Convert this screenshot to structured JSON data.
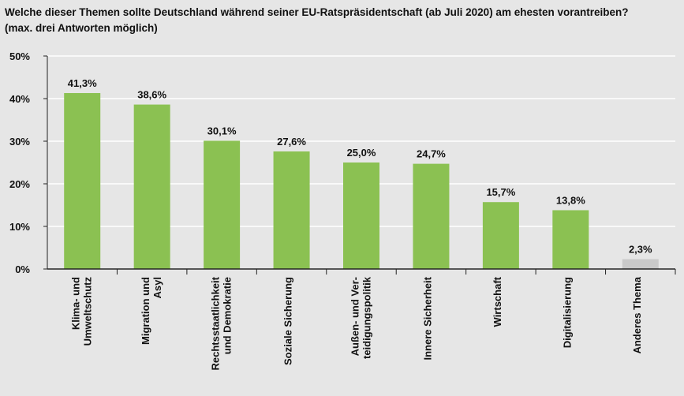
{
  "chart_data": {
    "type": "bar",
    "title": "Welche dieser Themen sollte Deutschland während seiner EU-Ratspräsidentschaft (ab Juli 2020) am ehesten vorantreiben?",
    "subtitle": "(max. drei Antworten möglich)",
    "categories": [
      "Klima- und\nUmweltschutz",
      "Migration und\nAsyl",
      "Rechtsstaatlichkeit\nund Demokratie",
      "Soziale Sicherung",
      "Außen- und Ver-\nteidigungspolitik",
      "Innere Sicherheit",
      "Wirtschaft",
      "Digitalisierung",
      "Anderes Thema"
    ],
    "values": [
      41.3,
      38.6,
      30.1,
      27.6,
      25.0,
      24.7,
      15.7,
      13.8,
      2.3
    ],
    "value_labels": [
      "41,3%",
      "38,6%",
      "30,1%",
      "27,6%",
      "25,0%",
      "24,7%",
      "15,7%",
      "13,8%",
      "2,3%"
    ],
    "colors": [
      "#8bc152",
      "#8bc152",
      "#8bc152",
      "#8bc152",
      "#8bc152",
      "#8bc152",
      "#8bc152",
      "#8bc152",
      "#c9c9c9"
    ],
    "ylim": [
      0,
      50
    ],
    "yticks": [
      {
        "value": 0,
        "label": "0%"
      },
      {
        "value": 10,
        "label": "10%"
      },
      {
        "value": 20,
        "label": "20%"
      },
      {
        "value": 30,
        "label": "30%"
      },
      {
        "value": 40,
        "label": "40%"
      },
      {
        "value": 50,
        "label": "50%"
      }
    ],
    "grid": true
  }
}
